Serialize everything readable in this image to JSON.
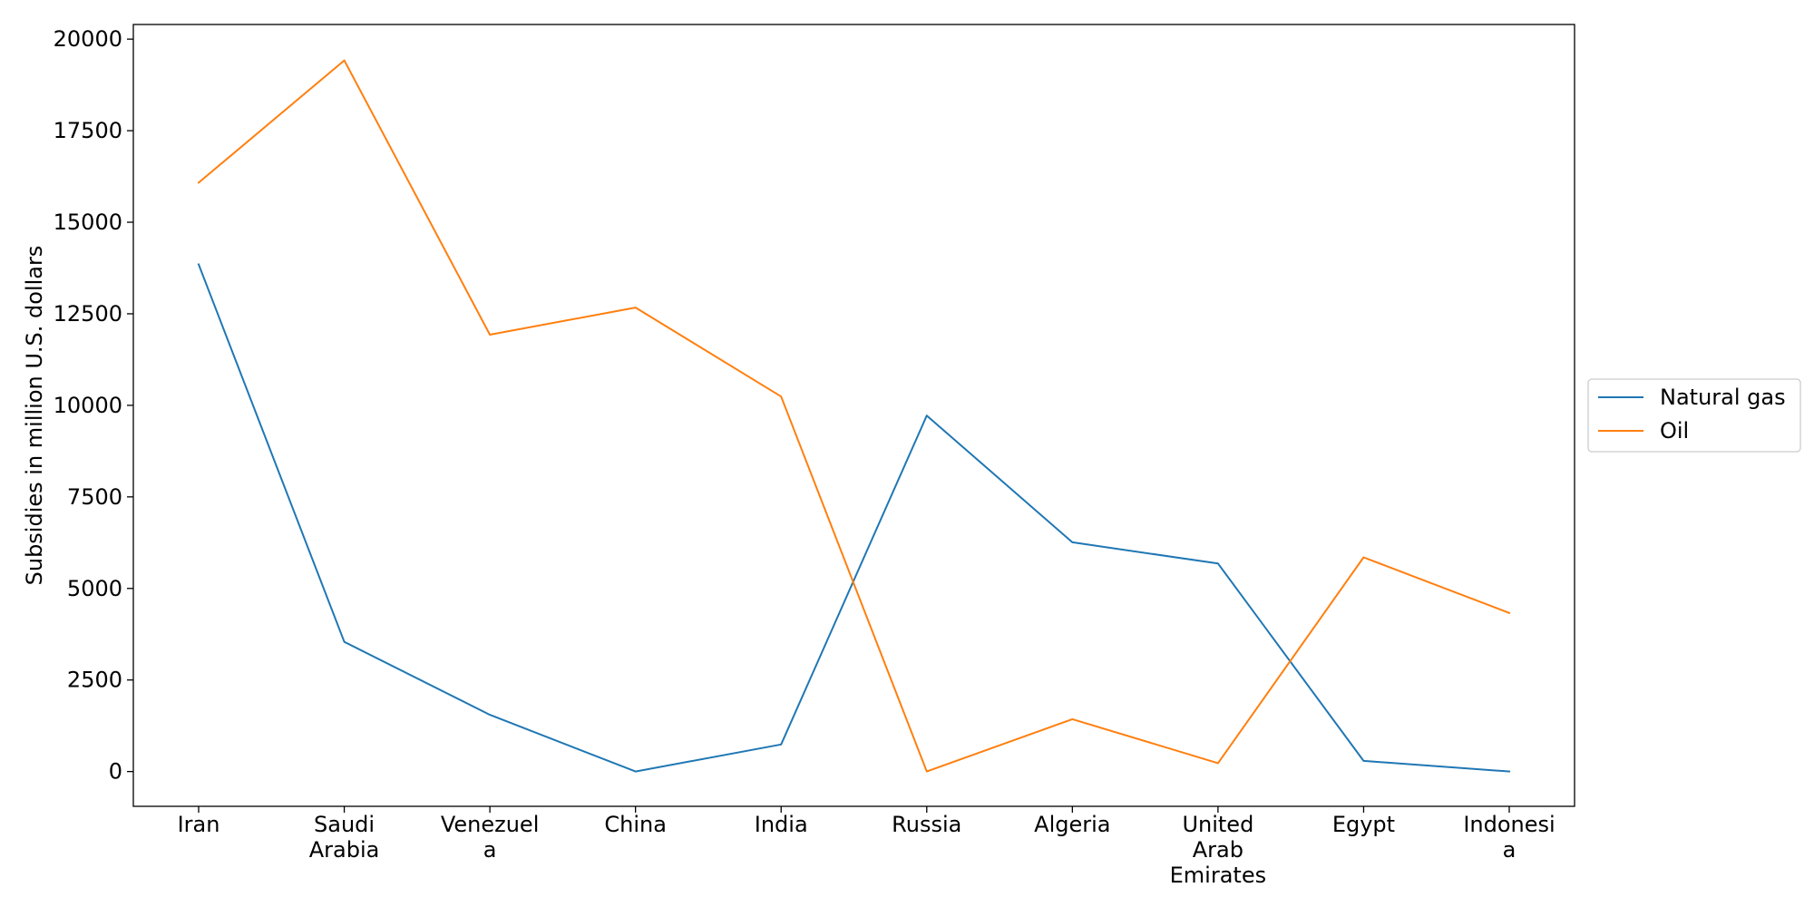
{
  "chart_data": {
    "type": "line",
    "categories": [
      [
        "Iran"
      ],
      [
        "Saudi",
        "Arabia"
      ],
      [
        "Venezuel",
        "a"
      ],
      [
        "China"
      ],
      [
        "India"
      ],
      [
        "Russia"
      ],
      [
        "Algeria"
      ],
      [
        "United",
        "Arab",
        "Emirates"
      ],
      [
        "Egypt"
      ],
      [
        "Indonesi",
        "a"
      ]
    ],
    "series": [
      {
        "name": "Natural gas",
        "color": "#1f77b4",
        "values": [
          13850,
          3540,
          1550,
          0,
          740,
          9720,
          6260,
          5680,
          290,
          0
        ]
      },
      {
        "name": "Oil",
        "color": "#ff7f0e",
        "values": [
          16080,
          19420,
          11930,
          12670,
          10240,
          0,
          1430,
          230,
          5850,
          4330
        ]
      }
    ],
    "title": "",
    "xlabel": "",
    "ylabel": "Subsidies in million U.S. dollars",
    "ylim": [
      -950,
      20400
    ],
    "yticks": [
      0,
      2500,
      5000,
      7500,
      10000,
      12500,
      15000,
      17500,
      20000
    ],
    "grid": false,
    "legend_position": "right"
  }
}
